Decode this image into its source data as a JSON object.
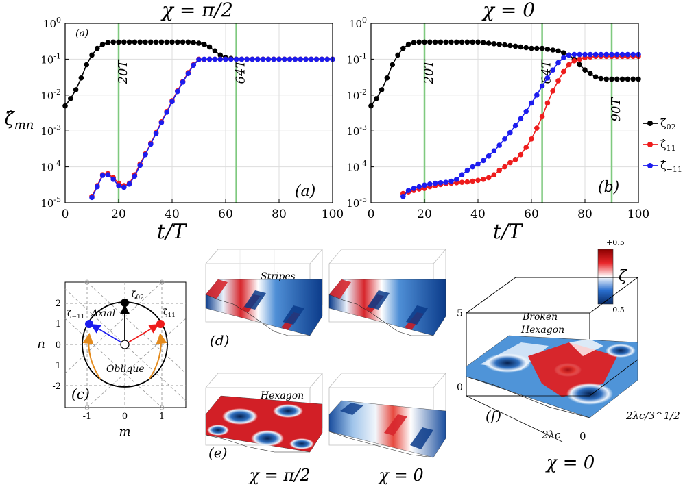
{
  "chart_data": [
    {
      "id": "panel-a",
      "type": "line",
      "title": "χ = π/2",
      "xlabel": "t/T",
      "ylabel": "ζ̂mn",
      "xlim": [
        0,
        100
      ],
      "ylim_log10": [
        -5,
        0
      ],
      "xticks": [
        0,
        20,
        40,
        60,
        80,
        100
      ],
      "yticks": [
        "10^0",
        "10^-1",
        "10^-2",
        "10^-3",
        "10^-4",
        "10^-5"
      ],
      "panel_label": "(a)",
      "corner_label": "(a)",
      "markers_vertical": [
        {
          "x": 20,
          "label": "20T"
        },
        {
          "x": 64,
          "label": "64T"
        }
      ],
      "series": [
        {
          "name": "ζ̂02",
          "color": "#000000",
          "x": [
            0,
            2,
            4,
            6,
            8,
            10,
            12,
            14,
            16,
            18,
            20,
            22,
            24,
            26,
            28,
            30,
            32,
            34,
            36,
            38,
            40,
            42,
            44,
            46,
            48,
            50,
            52,
            54,
            56,
            58,
            60,
            62,
            64,
            66,
            68,
            70,
            72,
            74,
            76,
            78,
            80,
            82,
            84,
            86,
            88,
            90,
            92,
            94,
            96,
            98,
            100
          ],
          "y": [
            0.005,
            0.008,
            0.014,
            0.03,
            0.07,
            0.13,
            0.2,
            0.26,
            0.29,
            0.3,
            0.3,
            0.3,
            0.3,
            0.3,
            0.3,
            0.3,
            0.3,
            0.3,
            0.3,
            0.3,
            0.3,
            0.3,
            0.3,
            0.3,
            0.29,
            0.28,
            0.26,
            0.22,
            0.17,
            0.13,
            0.11,
            0.105,
            0.1,
            0.1,
            0.1,
            0.1,
            0.1,
            0.1,
            0.1,
            0.1,
            0.1,
            0.1,
            0.1,
            0.1,
            0.1,
            0.1,
            0.1,
            0.1,
            0.1,
            0.1,
            0.1
          ]
        },
        {
          "name": "ζ̂11",
          "color": "#ee1c1c",
          "x": [
            10,
            12,
            14,
            16,
            18,
            20,
            22,
            24,
            26,
            28,
            30,
            32,
            34,
            36,
            38,
            40,
            42,
            44,
            46,
            48,
            50,
            52,
            54,
            56,
            58,
            60,
            62,
            64,
            66,
            68,
            70,
            72,
            74,
            76,
            78,
            80,
            82,
            84,
            86,
            88,
            90,
            92,
            94,
            96,
            98,
            100
          ],
          "y": [
            1.5e-05,
            3e-05,
            6e-05,
            6.5e-05,
            5e-05,
            3.5e-05,
            3e-05,
            3.5e-05,
            6e-05,
            0.00012,
            0.00023,
            0.00045,
            0.0009,
            0.0018,
            0.0035,
            0.007,
            0.013,
            0.024,
            0.042,
            0.07,
            0.1,
            0.098,
            0.1,
            0.1,
            0.1,
            0.1,
            0.1,
            0.1,
            0.1,
            0.1,
            0.1,
            0.1,
            0.1,
            0.1,
            0.1,
            0.1,
            0.1,
            0.1,
            0.1,
            0.1,
            0.1,
            0.1,
            0.1,
            0.1,
            0.1,
            0.1
          ]
        },
        {
          "name": "ζ̂−11",
          "color": "#1c1cee",
          "x": [
            10,
            12,
            14,
            16,
            18,
            20,
            22,
            24,
            26,
            28,
            30,
            32,
            34,
            36,
            38,
            40,
            42,
            44,
            46,
            48,
            50,
            52,
            54,
            56,
            58,
            60,
            62,
            64,
            66,
            68,
            70,
            72,
            74,
            76,
            78,
            80,
            82,
            84,
            86,
            88,
            90,
            92,
            94,
            96,
            98,
            100
          ],
          "y": [
            1.4e-05,
            2.8e-05,
            5.8e-05,
            6e-05,
            4.5e-05,
            3e-05,
            2.7e-05,
            3.3e-05,
            5.5e-05,
            0.00011,
            0.00022,
            0.00043,
            0.00085,
            0.0017,
            0.0033,
            0.0066,
            0.0125,
            0.023,
            0.04,
            0.068,
            0.098,
            0.1,
            0.1,
            0.1,
            0.1,
            0.1,
            0.1,
            0.1,
            0.1,
            0.1,
            0.1,
            0.1,
            0.1,
            0.1,
            0.1,
            0.1,
            0.1,
            0.1,
            0.1,
            0.1,
            0.1,
            0.1,
            0.1,
            0.1,
            0.1,
            0.1
          ]
        }
      ]
    },
    {
      "id": "panel-b",
      "type": "line",
      "title": "χ = 0",
      "xlabel": "t/T",
      "xlim": [
        0,
        100
      ],
      "ylim_log10": [
        -5,
        0
      ],
      "xticks": [
        0,
        20,
        40,
        60,
        80,
        100
      ],
      "yticks": [
        "10^0",
        "10^-1",
        "10^-2",
        "10^-3",
        "10^-4",
        "10^-5"
      ],
      "panel_label": "(b)",
      "markers_vertical": [
        {
          "x": 20,
          "label": "20T"
        },
        {
          "x": 64,
          "label": "64T"
        },
        {
          "x": 90,
          "label": "90T"
        }
      ],
      "series": [
        {
          "name": "ζ̂02",
          "color": "#000000",
          "x": [
            0,
            2,
            4,
            6,
            8,
            10,
            12,
            14,
            16,
            18,
            20,
            22,
            24,
            26,
            28,
            30,
            32,
            34,
            36,
            38,
            40,
            42,
            44,
            46,
            48,
            50,
            52,
            54,
            56,
            58,
            60,
            62,
            64,
            66,
            68,
            70,
            72,
            74,
            76,
            78,
            80,
            82,
            84,
            86,
            88,
            90,
            92,
            94,
            96,
            98,
            100
          ],
          "y": [
            0.005,
            0.008,
            0.014,
            0.03,
            0.07,
            0.13,
            0.2,
            0.26,
            0.29,
            0.3,
            0.3,
            0.3,
            0.3,
            0.3,
            0.3,
            0.3,
            0.3,
            0.3,
            0.3,
            0.3,
            0.3,
            0.29,
            0.28,
            0.27,
            0.26,
            0.25,
            0.24,
            0.23,
            0.22,
            0.21,
            0.2,
            0.2,
            0.2,
            0.19,
            0.18,
            0.17,
            0.15,
            0.13,
            0.1,
            0.07,
            0.05,
            0.04,
            0.032,
            0.029,
            0.028,
            0.028,
            0.028,
            0.028,
            0.028,
            0.028,
            0.028
          ]
        },
        {
          "name": "ζ̂11",
          "color": "#ee1c1c",
          "x": [
            12,
            14,
            16,
            18,
            20,
            22,
            24,
            26,
            28,
            30,
            32,
            34,
            36,
            38,
            40,
            42,
            44,
            46,
            48,
            50,
            52,
            54,
            56,
            58,
            60,
            62,
            64,
            66,
            68,
            70,
            72,
            74,
            76,
            78,
            80,
            82,
            84,
            86,
            88,
            90,
            92,
            94,
            96,
            98,
            100
          ],
          "y": [
            1.8e-05,
            2e-05,
            2.2e-05,
            2.4e-05,
            2.5e-05,
            2.8e-05,
            3e-05,
            3.2e-05,
            3.4e-05,
            3.5e-05,
            3.6e-05,
            3.7e-05,
            3.8e-05,
            4e-05,
            4.2e-05,
            4.5e-05,
            5e-05,
            6e-05,
            8e-05,
            0.0001,
            0.00013,
            0.00016,
            0.00022,
            0.00035,
            0.0006,
            0.0012,
            0.0025,
            0.006,
            0.013,
            0.025,
            0.045,
            0.07,
            0.09,
            0.1,
            0.11,
            0.115,
            0.12,
            0.12,
            0.12,
            0.12,
            0.12,
            0.12,
            0.12,
            0.12,
            0.12
          ]
        },
        {
          "name": "ζ̂−11",
          "color": "#1c1cee",
          "x": [
            12,
            14,
            16,
            18,
            20,
            22,
            24,
            26,
            28,
            30,
            32,
            34,
            36,
            38,
            40,
            42,
            44,
            46,
            48,
            50,
            52,
            54,
            56,
            58,
            60,
            62,
            64,
            66,
            68,
            70,
            72,
            74,
            76,
            78,
            80,
            82,
            84,
            86,
            88,
            90,
            92,
            94,
            96,
            98,
            100
          ],
          "y": [
            1.5e-05,
            2.2e-05,
            2.5e-05,
            2.8e-05,
            3.1e-05,
            3.3e-05,
            3.5e-05,
            3.6e-05,
            3.7e-05,
            4e-05,
            4.5e-05,
            6e-05,
            8e-05,
            0.0001,
            0.00012,
            0.00015,
            0.0002,
            0.00028,
            0.0004,
            0.0006,
            0.0009,
            0.0014,
            0.0022,
            0.0035,
            0.006,
            0.01,
            0.018,
            0.03,
            0.05,
            0.08,
            0.11,
            0.13,
            0.135,
            0.135,
            0.135,
            0.135,
            0.135,
            0.135,
            0.135,
            0.135,
            0.135,
            0.135,
            0.135,
            0.135,
            0.135
          ]
        }
      ]
    }
  ],
  "legend": {
    "items": [
      {
        "label": "ζ̂",
        "sub": "02",
        "color": "#000000"
      },
      {
        "label": "ζ̂",
        "sub": "11",
        "color": "#ee1c1c"
      },
      {
        "label": "ζ̂",
        "sub": "−11",
        "color": "#1c1cee"
      }
    ]
  },
  "panel_c": {
    "label": "(c)",
    "xlabel": "m",
    "ylabel": "n",
    "xticks": [
      "-1",
      "0",
      "1"
    ],
    "yticks": [
      "2",
      "1",
      "0",
      "-1",
      "-2"
    ],
    "axial_label": "Axial",
    "oblique_label": "Oblique",
    "mode_02": "ζ̂02",
    "mode_11": "ζ̂11",
    "mode_m11": "ζ̂−11"
  },
  "panel_d": {
    "label": "(d)",
    "title": "Stripes"
  },
  "panel_e": {
    "label": "(e)",
    "title": "Hexagon",
    "chi_left": "χ = π/2",
    "chi_right": "χ = 0"
  },
  "panel_f": {
    "label": "(f)",
    "title_line1": "Broken",
    "title_line2": "Hexagon",
    "z_tick_top": "5",
    "z_tick_bottom": "0",
    "y_tick_a": "2λc/3^1/2",
    "x_tick_a": "2λc",
    "x_tick_zero": "0",
    "chi": "χ = 0"
  },
  "colorbar": {
    "label": "ζ",
    "max": "+0.5",
    "min": "−0.5"
  }
}
